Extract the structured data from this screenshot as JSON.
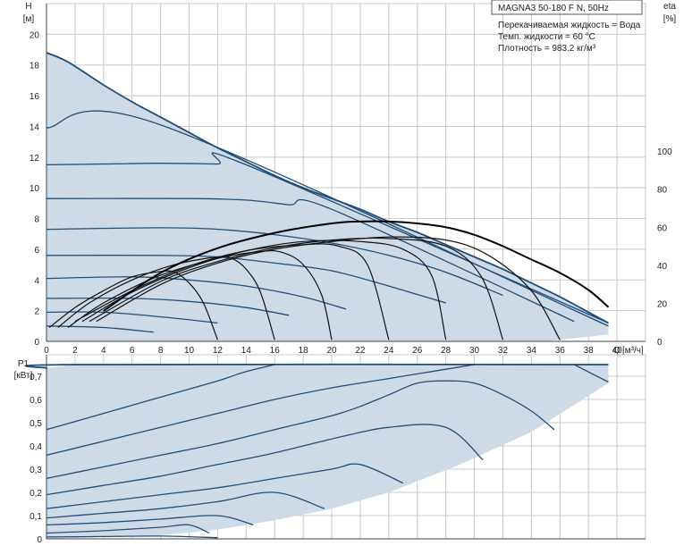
{
  "chart_data": [
    {
      "type": "line",
      "title": "MAGNA3 50-180 F N, 50Hz",
      "info": [
        "Перекачиваемая жидкость = Вода",
        "Темп. жидкости = 60 °C",
        "Плотность = 983.2 кг/м³"
      ],
      "ylabel": "H",
      "yunit": "[м]",
      "xlabel": "Q",
      "xunit": "[м³/ч]",
      "y2label": "eta",
      "y2unit": "[%]",
      "xlim": [
        0,
        42
      ],
      "ylim": [
        0,
        22
      ],
      "y2lim": [
        0,
        100
      ],
      "xticks": [
        "0",
        "2",
        "4",
        "6",
        "8",
        "10",
        "12",
        "14",
        "16",
        "18",
        "20",
        "22",
        "24",
        "26",
        "28",
        "30",
        "32",
        "34",
        "36",
        "38",
        "40"
      ],
      "yticks": [
        "0",
        "2",
        "4",
        "6",
        "8",
        "10",
        "12",
        "14",
        "16",
        "18",
        "20"
      ],
      "y2ticks": [
        "0",
        "20",
        "40",
        "60",
        "80",
        "100"
      ],
      "grid": true,
      "envelope": [
        [
          0,
          18.8
        ],
        [
          1.5,
          18.2
        ],
        [
          4,
          16.7
        ],
        [
          6,
          15.6
        ],
        [
          8,
          14.6
        ],
        [
          10,
          13.6
        ],
        [
          12,
          12.6
        ],
        [
          14,
          11.7
        ],
        [
          16,
          10.8
        ],
        [
          18,
          10.0
        ],
        [
          20,
          9.3
        ],
        [
          22,
          8.6
        ],
        [
          24,
          7.8
        ],
        [
          26,
          7.1
        ],
        [
          28,
          6.3
        ],
        [
          30,
          5.5
        ],
        [
          32,
          4.7
        ],
        [
          34,
          3.8
        ],
        [
          36,
          2.9
        ],
        [
          38,
          1.9
        ],
        [
          39.4,
          1.2
        ],
        [
          39.4,
          0.45
        ],
        [
          35,
          0
        ],
        [
          0,
          0
        ]
      ],
      "series": [
        {
          "x": [
            0,
            8,
            39.4
          ],
          "y": [
            13.9,
            14.1,
            1.0
          ]
        },
        {
          "x": [
            0,
            4,
            8,
            12,
            14,
            39.4
          ],
          "y": [
            11.5,
            11.55,
            11.6,
            11.55,
            11.5,
            1.2
          ]
        },
        {
          "x": [
            0,
            10,
            14,
            17,
            20,
            37
          ],
          "y": [
            9.3,
            9.3,
            9.2,
            8.9,
            8.6,
            1.3
          ]
        },
        {
          "x": [
            0,
            8,
            12,
            16,
            20,
            24,
            28,
            32
          ],
          "y": [
            7.3,
            7.4,
            7.3,
            6.95,
            6.4,
            5.6,
            4.5,
            3.0
          ]
        },
        {
          "x": [
            0,
            8,
            12,
            16,
            20,
            24,
            28
          ],
          "y": [
            5.6,
            5.6,
            5.5,
            5.1,
            4.6,
            3.6,
            2.5
          ]
        },
        {
          "x": [
            0,
            6,
            10,
            14,
            18,
            21
          ],
          "y": [
            4.1,
            4.2,
            4.0,
            3.6,
            2.9,
            2.1
          ]
        },
        {
          "x": [
            0,
            6,
            10,
            14,
            17
          ],
          "y": [
            2.8,
            2.8,
            2.6,
            2.2,
            1.7
          ]
        },
        {
          "x": [
            0,
            4,
            8,
            12
          ],
          "y": [
            1.9,
            1.9,
            1.6,
            1.2
          ]
        },
        {
          "x": [
            0,
            4,
            7.5
          ],
          "y": [
            1.0,
            0.9,
            0.6
          ]
        }
      ],
      "system_curves": [
        {
          "x": [
            0.2,
            2,
            4,
            6,
            8,
            9,
            10,
            11,
            12
          ],
          "y": [
            0.9,
            2.2,
            3.3,
            4.2,
            4.55,
            4.5,
            3.8,
            2.5,
            0.1
          ]
        },
        {
          "x": [
            0.8,
            3,
            6,
            9,
            12,
            13,
            14,
            15,
            16
          ],
          "y": [
            0.9,
            2.5,
            4.0,
            5.0,
            5.5,
            5.4,
            4.7,
            3.2,
            0.1
          ]
        },
        {
          "x": [
            1.5,
            4,
            8,
            12,
            15,
            16.5,
            18,
            19.3,
            20
          ],
          "y": [
            0.9,
            2.5,
            4.3,
            5.4,
            5.85,
            5.8,
            5.0,
            3.0,
            0.1
          ]
        },
        {
          "x": [
            2,
            6,
            10,
            14,
            18,
            20.5,
            22.5,
            24
          ],
          "y": [
            1.3,
            3.3,
            4.9,
            5.9,
            6.3,
            6.2,
            5.0,
            0.1
          ]
        },
        {
          "x": [
            2.5,
            6,
            10,
            14,
            18,
            22,
            25,
            27,
            28
          ],
          "y": [
            1.3,
            3.2,
            4.8,
            5.9,
            6.5,
            6.5,
            6.0,
            4.3,
            0.1
          ]
        },
        {
          "x": [
            3,
            8,
            12,
            16,
            20,
            24,
            28,
            30.5,
            32
          ],
          "y": [
            1.3,
            3.9,
            5.2,
            6.1,
            6.6,
            6.7,
            6.2,
            4.2,
            0.1
          ]
        },
        {
          "x": [
            3.5,
            8,
            12,
            16,
            20,
            24,
            28,
            31,
            34,
            36
          ],
          "y": [
            1.3,
            3.7,
            5.1,
            6.0,
            6.5,
            6.8,
            6.6,
            5.6,
            3.3,
            0.1
          ]
        }
      ],
      "efficiency": {
        "x": [
          4,
          8,
          12,
          16,
          20,
          22,
          24,
          26,
          28,
          30,
          32,
          34,
          36,
          38,
          39.4
        ],
        "y": [
          16,
          36,
          49,
          57,
          62,
          63,
          63,
          62,
          60,
          56,
          50,
          43,
          36,
          27,
          18
        ]
      }
    },
    {
      "type": "line",
      "ylabel": "P1",
      "yunit": "[кВт]",
      "xlim": [
        0,
        42
      ],
      "ylim": [
        0,
        0.75
      ],
      "yticks": [
        "0",
        "0,1",
        "0,2",
        "0,3",
        "0,4",
        "0,5",
        "0,6",
        "0,7"
      ],
      "grid": true,
      "envelope": [
        [
          0,
          0.735
        ],
        [
          2,
          0.75
        ],
        [
          39.4,
          0.75
        ],
        [
          39.4,
          0.67
        ],
        [
          34,
          0.46
        ],
        [
          29,
          0.32
        ],
        [
          24,
          0.2
        ],
        [
          20,
          0.13
        ],
        [
          16,
          0.08
        ],
        [
          12,
          0.04
        ],
        [
          8,
          0.015
        ],
        [
          0,
          0
        ]
      ],
      "series": [
        {
          "x": [
            0,
            2,
            39.4
          ],
          "y": [
            0.735,
            0.75,
            0.75
          ]
        },
        {
          "x": [
            37,
            39.4
          ],
          "y": [
            0.75,
            0.675
          ]
        },
        {
          "x": [
            0,
            4,
            8,
            12,
            14,
            16
          ],
          "y": [
            0.47,
            0.54,
            0.61,
            0.68,
            0.72,
            0.75
          ]
        },
        {
          "x": [
            0,
            4,
            8,
            12,
            16,
            20,
            24,
            28,
            30
          ],
          "y": [
            0.36,
            0.42,
            0.48,
            0.54,
            0.6,
            0.65,
            0.69,
            0.73,
            0.75
          ]
        },
        {
          "x": [
            0,
            4,
            8,
            12,
            16,
            20,
            22,
            24,
            26,
            28,
            30,
            32,
            34,
            35.6
          ],
          "y": [
            0.26,
            0.31,
            0.36,
            0.41,
            0.47,
            0.53,
            0.57,
            0.62,
            0.67,
            0.68,
            0.67,
            0.62,
            0.55,
            0.47
          ]
        },
        {
          "x": [
            0,
            4,
            8,
            12,
            16,
            20,
            24,
            28,
            30.6
          ],
          "y": [
            0.19,
            0.23,
            0.27,
            0.32,
            0.37,
            0.43,
            0.48,
            0.48,
            0.34
          ]
        },
        {
          "x": [
            0,
            4,
            8,
            12,
            16,
            20,
            22,
            25
          ],
          "y": [
            0.13,
            0.16,
            0.19,
            0.22,
            0.26,
            0.3,
            0.32,
            0.24
          ]
        },
        {
          "x": [
            0,
            4,
            8,
            12,
            16,
            19.5
          ],
          "y": [
            0.09,
            0.11,
            0.13,
            0.16,
            0.2,
            0.13
          ]
        },
        {
          "x": [
            0,
            4,
            8,
            12,
            14.5
          ],
          "y": [
            0.06,
            0.07,
            0.085,
            0.1,
            0.06
          ]
        },
        {
          "x": [
            0,
            4,
            8,
            10,
            11.4
          ],
          "y": [
            0.025,
            0.035,
            0.05,
            0.06,
            0.025
          ]
        },
        {
          "x": [
            0,
            4,
            8,
            12
          ],
          "y": [
            0.008,
            0.01,
            0.012,
            0.005
          ]
        }
      ]
    }
  ]
}
